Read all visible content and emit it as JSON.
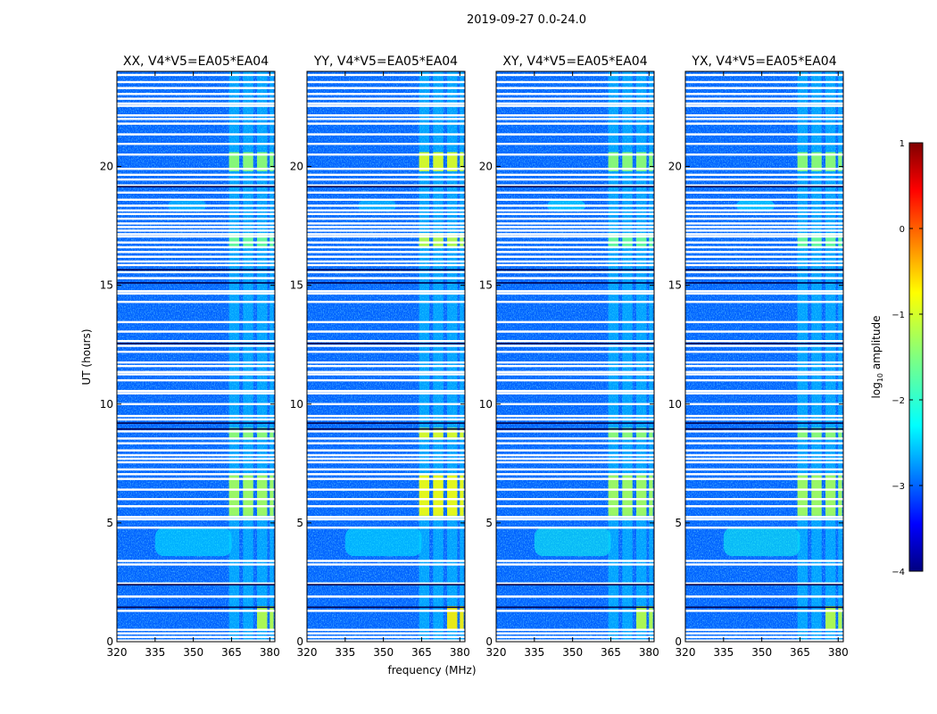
{
  "figure": {
    "suptitle": "2019-09-27 0.0-24.0",
    "xlabel": "frequency (MHz)",
    "ylabel": "UT (hours)"
  },
  "chart_data": {
    "type": "heatmap",
    "panels": [
      {
        "title": "XX, V4*V5=EA05*EA04",
        "pol": "XX"
      },
      {
        "title": "YY, V4*V5=EA05*EA04",
        "pol": "YY"
      },
      {
        "title": "XY, V4*V5=EA05*EA04",
        "pol": "XY"
      },
      {
        "title": "YX, V4*V5=EA05*EA04",
        "pol": "YX"
      }
    ],
    "x_range": [
      320,
      382
    ],
    "x_ticks": [
      320,
      335,
      350,
      365,
      380
    ],
    "x_tick_labels": [
      "320",
      "335",
      "350",
      "365",
      "380"
    ],
    "y_range": [
      0,
      24
    ],
    "y_ticks": [
      0,
      5,
      10,
      15,
      20
    ],
    "y_tick_labels": [
      "0",
      "5",
      "10",
      "15",
      "20"
    ],
    "colorbar": {
      "label": "log10 amplitude",
      "label_main": "log",
      "label_sub": "10",
      "label_tail": " amplitude",
      "range": [
        -4,
        1
      ],
      "ticks": [
        1,
        0,
        -1,
        -2,
        -3,
        -4
      ],
      "tick_labels": [
        "1",
        "0",
        "−1",
        "−2",
        "−3",
        "−4"
      ],
      "colormap": "jet"
    },
    "flagged_hours": [
      0.05,
      0.2,
      0.35,
      0.5,
      1.3,
      1.9,
      2.45,
      3.25,
      3.4,
      4.8,
      5.15,
      5.25,
      5.7,
      6.0,
      6.4,
      6.85,
      7.05,
      7.25,
      7.55,
      7.7,
      7.85,
      8.05,
      8.35,
      8.55,
      8.85,
      9.35,
      9.5,
      10.0,
      10.45,
      10.55,
      11.0,
      11.25,
      11.35,
      11.6,
      11.75,
      12.2,
      12.45,
      12.65,
      13.05,
      13.45,
      14.3,
      14.65,
      14.75,
      15.3,
      15.55,
      15.85,
      16.0,
      16.2,
      16.4,
      16.6,
      16.8,
      17.05,
      17.15,
      17.3,
      17.45,
      17.6,
      17.8,
      18.0,
      18.15,
      18.35,
      18.6,
      18.9,
      19.2,
      19.45,
      19.65,
      19.9,
      20.5,
      20.95,
      21.35,
      21.8,
      22.0,
      22.15,
      22.55,
      22.65,
      22.85,
      23.05,
      23.3,
      23.55,
      23.85
    ],
    "black_rows_hours": [
      1.45,
      2.4,
      8.95,
      9.2,
      12.55,
      15.1,
      15.65,
      19.15
    ],
    "rfi_bands_mhz": [
      [
        364,
        368
      ],
      [
        369.5,
        373.5
      ],
      [
        375,
        379
      ],
      [
        380,
        381.5
      ]
    ],
    "rfi_segments": [
      {
        "hours": [
          0.5,
          1.5
        ],
        "freq": [
          375,
          381.5
        ],
        "level": -1.2
      },
      {
        "hours": [
          5.3,
          7.0
        ],
        "freq": [
          364,
          381.5
        ],
        "level": -1.3
      },
      {
        "hours": [
          8.5,
          9.0
        ],
        "freq": [
          364,
          381.5
        ],
        "level": -1.4
      },
      {
        "hours": [
          19.8,
          20.6
        ],
        "freq": [
          364,
          381.5
        ],
        "level": -1.4
      },
      {
        "hours": [
          16.6,
          17.2
        ],
        "freq": [
          364,
          381.5
        ],
        "level": -1.6
      }
    ],
    "diffuse_features": [
      {
        "hours": [
          3.6,
          4.8
        ],
        "freq": [
          335,
          365
        ],
        "level": -2.2
      },
      {
        "hours": [
          18.1,
          18.6
        ],
        "freq": [
          340,
          355
        ],
        "level": -2.3
      }
    ],
    "background_level": -2.9
  }
}
